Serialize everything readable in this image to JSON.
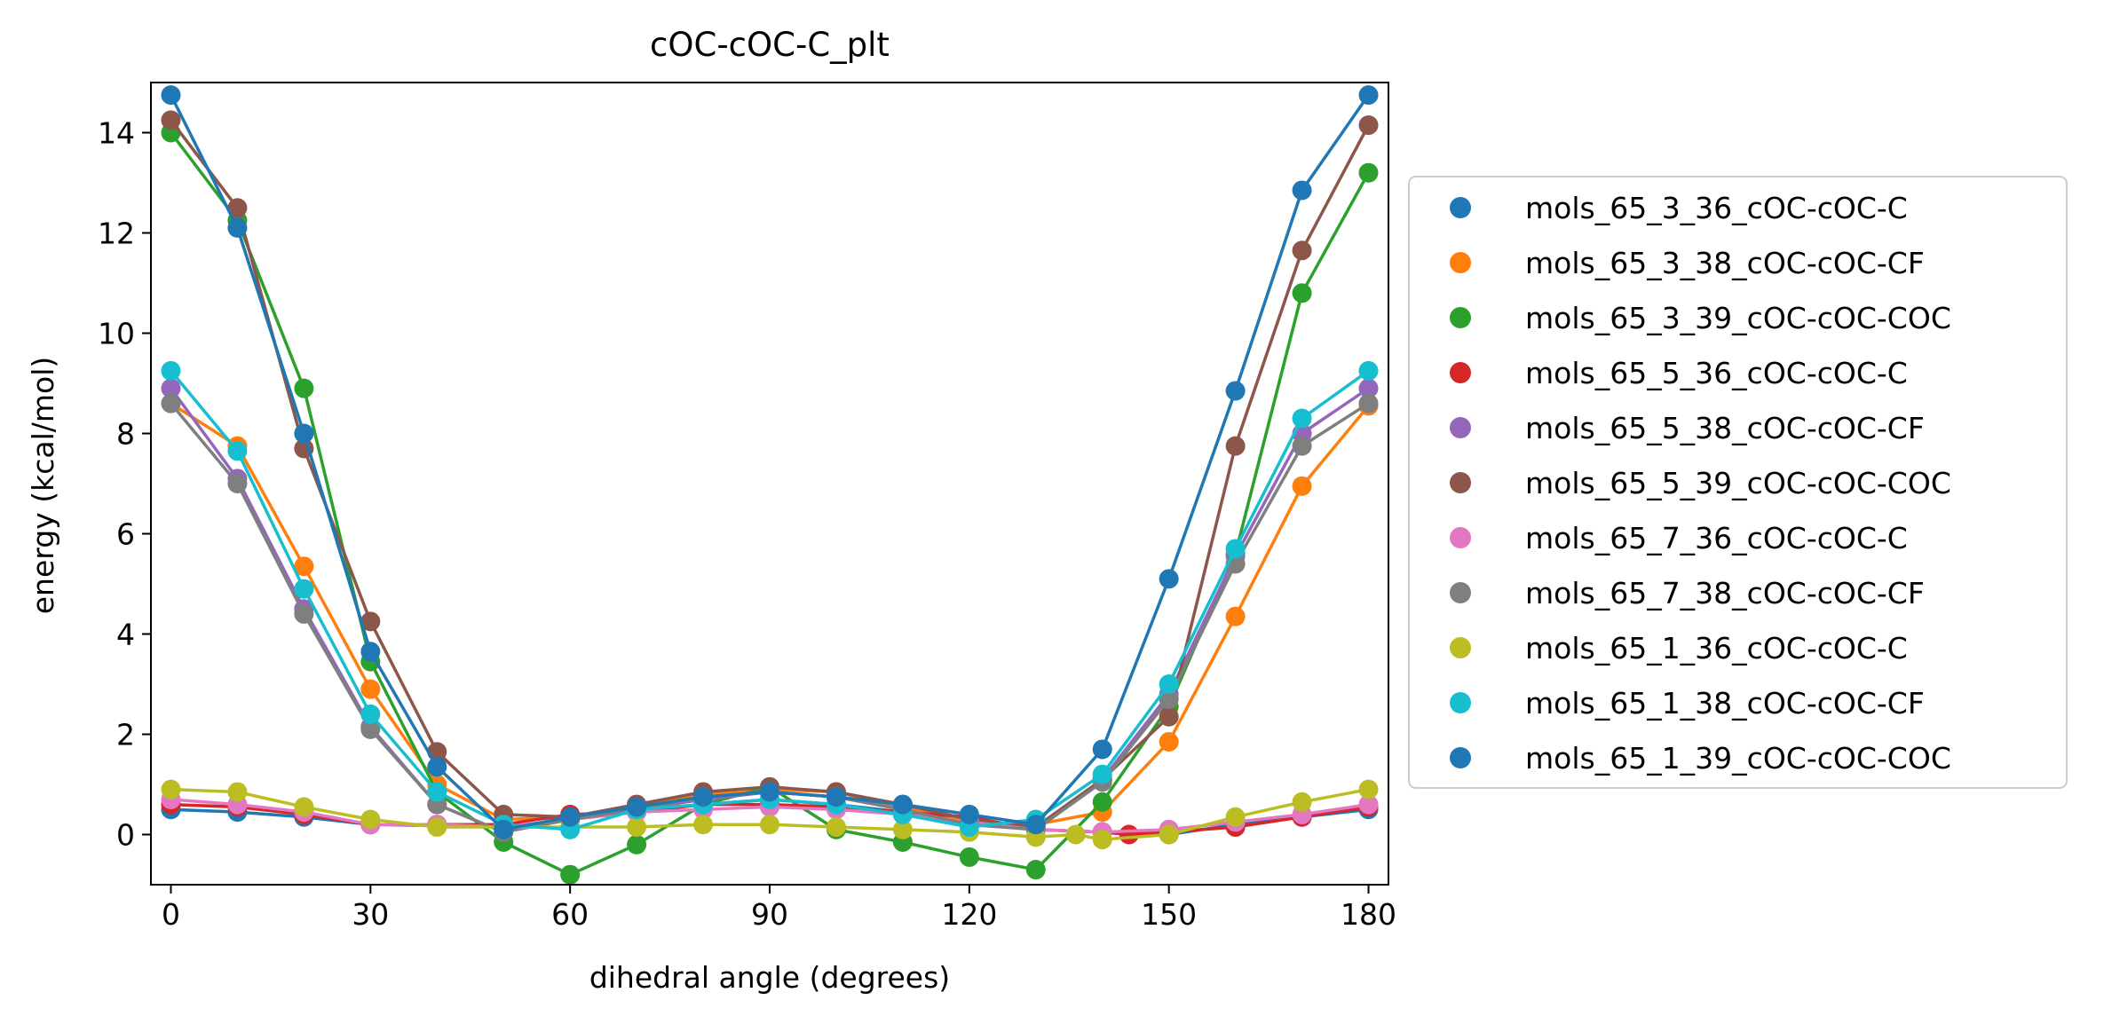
{
  "chart_data": {
    "type": "line",
    "title": "cOC-cOC-C_plt",
    "xlabel": "dihedral angle (degrees)",
    "ylabel": "energy (kcal/mol)",
    "xlim": [
      -3,
      183
    ],
    "ylim": [
      -1.0,
      15.0
    ],
    "xticks": [
      0,
      30,
      60,
      90,
      120,
      150,
      180
    ],
    "yticks": [
      0,
      2,
      4,
      6,
      8,
      10,
      12,
      14
    ],
    "grid": false,
    "legend_position": "right",
    "series": [
      {
        "name": "mols_65_3_36_cOC-cOC-C",
        "color": "#1f77b4",
        "x": [
          0,
          10,
          20,
          30,
          40,
          50,
          60,
          70,
          80,
          90,
          100,
          110,
          120,
          130,
          140,
          150,
          160,
          170,
          180
        ],
        "y": [
          0.5,
          0.45,
          0.35,
          0.2,
          0.18,
          0.15,
          0.3,
          0.45,
          0.6,
          0.7,
          0.6,
          0.45,
          0.35,
          0.1,
          0.05,
          0.0,
          0.2,
          0.35,
          0.5
        ]
      },
      {
        "name": "mols_65_3_38_cOC-cOC-CF",
        "color": "#ff7f0e",
        "x": [
          0,
          10,
          20,
          30,
          40,
          50,
          60,
          70,
          80,
          90,
          100,
          110,
          120,
          130,
          140,
          150,
          160,
          170,
          180
        ],
        "y": [
          8.6,
          7.75,
          5.35,
          2.9,
          1.0,
          0.3,
          0.35,
          0.6,
          0.8,
          0.9,
          0.85,
          0.55,
          0.25,
          0.2,
          0.45,
          1.85,
          4.35,
          6.95,
          8.55
        ]
      },
      {
        "name": "mols_65_3_39_cOC-cOC-COC",
        "color": "#2ca02c",
        "x": [
          0,
          10,
          20,
          30,
          40,
          50,
          60,
          70,
          80,
          90,
          100,
          110,
          120,
          130,
          140,
          150,
          160,
          170,
          180
        ],
        "y": [
          14.0,
          12.25,
          8.9,
          3.45,
          0.85,
          -0.15,
          -0.8,
          -0.2,
          0.6,
          0.95,
          0.1,
          -0.15,
          -0.45,
          -0.7,
          0.65,
          2.55,
          5.6,
          10.8,
          13.2
        ]
      },
      {
        "name": "mols_65_5_36_cOC-cOC-C",
        "color": "#d62728",
        "x": [
          0,
          10,
          20,
          30,
          40,
          50,
          60,
          70,
          80,
          90,
          100,
          110,
          120,
          130,
          140,
          144,
          150,
          160,
          170,
          180
        ],
        "y": [
          0.6,
          0.55,
          0.4,
          0.2,
          0.2,
          0.2,
          0.4,
          0.45,
          0.6,
          0.6,
          0.55,
          0.45,
          0.35,
          0.1,
          0.05,
          0.0,
          0.05,
          0.15,
          0.35,
          0.55
        ]
      },
      {
        "name": "mols_65_5_38_cOC-cOC-CF",
        "color": "#9467bd",
        "x": [
          0,
          10,
          20,
          30,
          40,
          50,
          60,
          70,
          80,
          90,
          100,
          110,
          120,
          130,
          140,
          150,
          160,
          170,
          180
        ],
        "y": [
          8.9,
          7.1,
          4.5,
          2.15,
          0.6,
          0.05,
          0.3,
          0.5,
          0.7,
          0.85,
          0.75,
          0.5,
          0.2,
          0.1,
          1.1,
          2.8,
          5.55,
          8.0,
          8.9
        ]
      },
      {
        "name": "mols_65_5_39_cOC-cOC-COC",
        "color": "#8c564b",
        "x": [
          0,
          10,
          20,
          30,
          40,
          50,
          60,
          70,
          80,
          90,
          100,
          110,
          120,
          130,
          140,
          150,
          160,
          170,
          180
        ],
        "y": [
          14.25,
          12.5,
          7.7,
          4.25,
          1.65,
          0.4,
          0.35,
          0.6,
          0.85,
          0.95,
          0.85,
          0.6,
          0.3,
          0.15,
          1.1,
          2.35,
          7.75,
          11.65,
          14.15
        ]
      },
      {
        "name": "mols_65_7_36_cOC-cOC-C",
        "color": "#e377c2",
        "x": [
          0,
          10,
          20,
          30,
          40,
          50,
          60,
          70,
          80,
          90,
          100,
          110,
          120,
          130,
          140,
          150,
          160,
          170,
          180
        ],
        "y": [
          0.7,
          0.6,
          0.45,
          0.2,
          0.2,
          0.15,
          0.3,
          0.45,
          0.5,
          0.55,
          0.5,
          0.4,
          0.25,
          0.1,
          0.05,
          0.1,
          0.25,
          0.4,
          0.6
        ]
      },
      {
        "name": "mols_65_7_38_cOC-cOC-CF",
        "color": "#7f7f7f",
        "x": [
          0,
          10,
          20,
          30,
          40,
          50,
          60,
          70,
          80,
          90,
          100,
          110,
          120,
          130,
          140,
          150,
          160,
          170,
          180
        ],
        "y": [
          8.6,
          7.0,
          4.4,
          2.1,
          0.6,
          0.05,
          0.3,
          0.5,
          0.75,
          0.85,
          0.75,
          0.5,
          0.2,
          0.1,
          1.05,
          2.7,
          5.4,
          7.75,
          8.6
        ]
      },
      {
        "name": "mols_65_1_36_cOC-cOC-C",
        "color": "#bcbd22",
        "x": [
          0,
          10,
          20,
          30,
          40,
          50,
          60,
          70,
          80,
          90,
          100,
          110,
          120,
          130,
          136,
          140,
          150,
          160,
          170,
          180
        ],
        "y": [
          0.9,
          0.85,
          0.55,
          0.3,
          0.15,
          0.15,
          0.15,
          0.15,
          0.2,
          0.2,
          0.15,
          0.1,
          0.05,
          -0.05,
          0.0,
          -0.1,
          0.0,
          0.35,
          0.65,
          0.9
        ]
      },
      {
        "name": "mols_65_1_38_cOC-cOC-CF",
        "color": "#17becf",
        "x": [
          0,
          10,
          20,
          30,
          40,
          50,
          60,
          70,
          80,
          90,
          100,
          110,
          120,
          130,
          140,
          150,
          160,
          170,
          180
        ],
        "y": [
          9.25,
          7.65,
          4.9,
          2.4,
          0.85,
          0.2,
          0.1,
          0.5,
          0.6,
          0.7,
          0.6,
          0.4,
          0.15,
          0.3,
          1.2,
          3.0,
          5.7,
          8.3,
          9.25
        ]
      },
      {
        "name": "mols_65_1_39_cOC-cOC-COC",
        "color": "#1f77b4",
        "x": [
          0,
          10,
          20,
          30,
          40,
          50,
          60,
          70,
          80,
          90,
          100,
          110,
          120,
          130,
          140,
          150,
          160,
          170,
          180
        ],
        "y": [
          14.75,
          12.1,
          8.0,
          3.65,
          1.35,
          0.1,
          0.35,
          0.55,
          0.75,
          0.85,
          0.75,
          0.6,
          0.4,
          0.2,
          1.7,
          5.1,
          8.85,
          12.85,
          14.75
        ]
      }
    ]
  }
}
